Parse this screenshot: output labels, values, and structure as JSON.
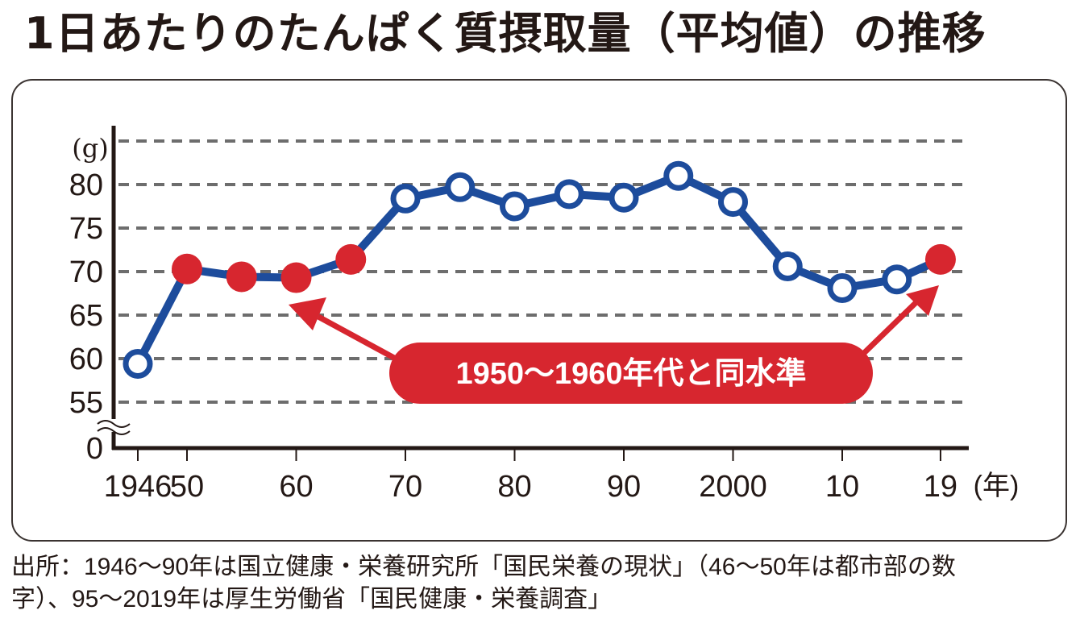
{
  "title": "1日あたりのたんぱく質摂取量（平均値）の推移",
  "footnote": {
    "line1": "出所：1946〜90年は国立健康・栄養研究所「国民栄養の現状」（46〜50年は都市部の数",
    "line2": "字）、95〜2019年は厚生労働省「国民健康・栄養調査」"
  },
  "colors": {
    "line": "#1d4c9c",
    "highlight": "#d7262f",
    "grid": "#6d6d6d",
    "axis": "#231815"
  },
  "chart_data": {
    "type": "line",
    "title": "1日あたりのたんぱく質摂取量（平均値）の推移",
    "ylabel": "(g)",
    "xlabel": "(年)",
    "ylim": [
      55,
      85
    ],
    "y_break": true,
    "yticks": [
      "80",
      "75",
      "70",
      "65",
      "60",
      "55",
      "0"
    ],
    "ytick_values": [
      80,
      75,
      70,
      65,
      60,
      55
    ],
    "xtick_labels": [
      "1946",
      "50",
      "60",
      "70",
      "80",
      "90",
      "2000",
      "10",
      "19"
    ],
    "xtick_years": [
      1946,
      1950,
      1960,
      1970,
      1980,
      1990,
      2000,
      2010,
      2019
    ],
    "grid": true,
    "series": [
      {
        "name": "たんぱく質摂取量",
        "x": [
          1946,
          1950,
          1955,
          1960,
          1965,
          1970,
          1975,
          1980,
          1985,
          1990,
          1995,
          2000,
          2005,
          2010,
          2015,
          2019
        ],
        "values": [
          59.4,
          70.3,
          69.4,
          69.3,
          71.4,
          78.4,
          79.7,
          77.5,
          78.9,
          78.5,
          81.0,
          78.0,
          70.6,
          68.1,
          69.1,
          71.4
        ],
        "highlighted": [
          false,
          true,
          true,
          true,
          true,
          false,
          false,
          false,
          false,
          false,
          false,
          false,
          false,
          false,
          false,
          true
        ]
      }
    ],
    "annotation": "1950〜1960年代と同水準"
  }
}
